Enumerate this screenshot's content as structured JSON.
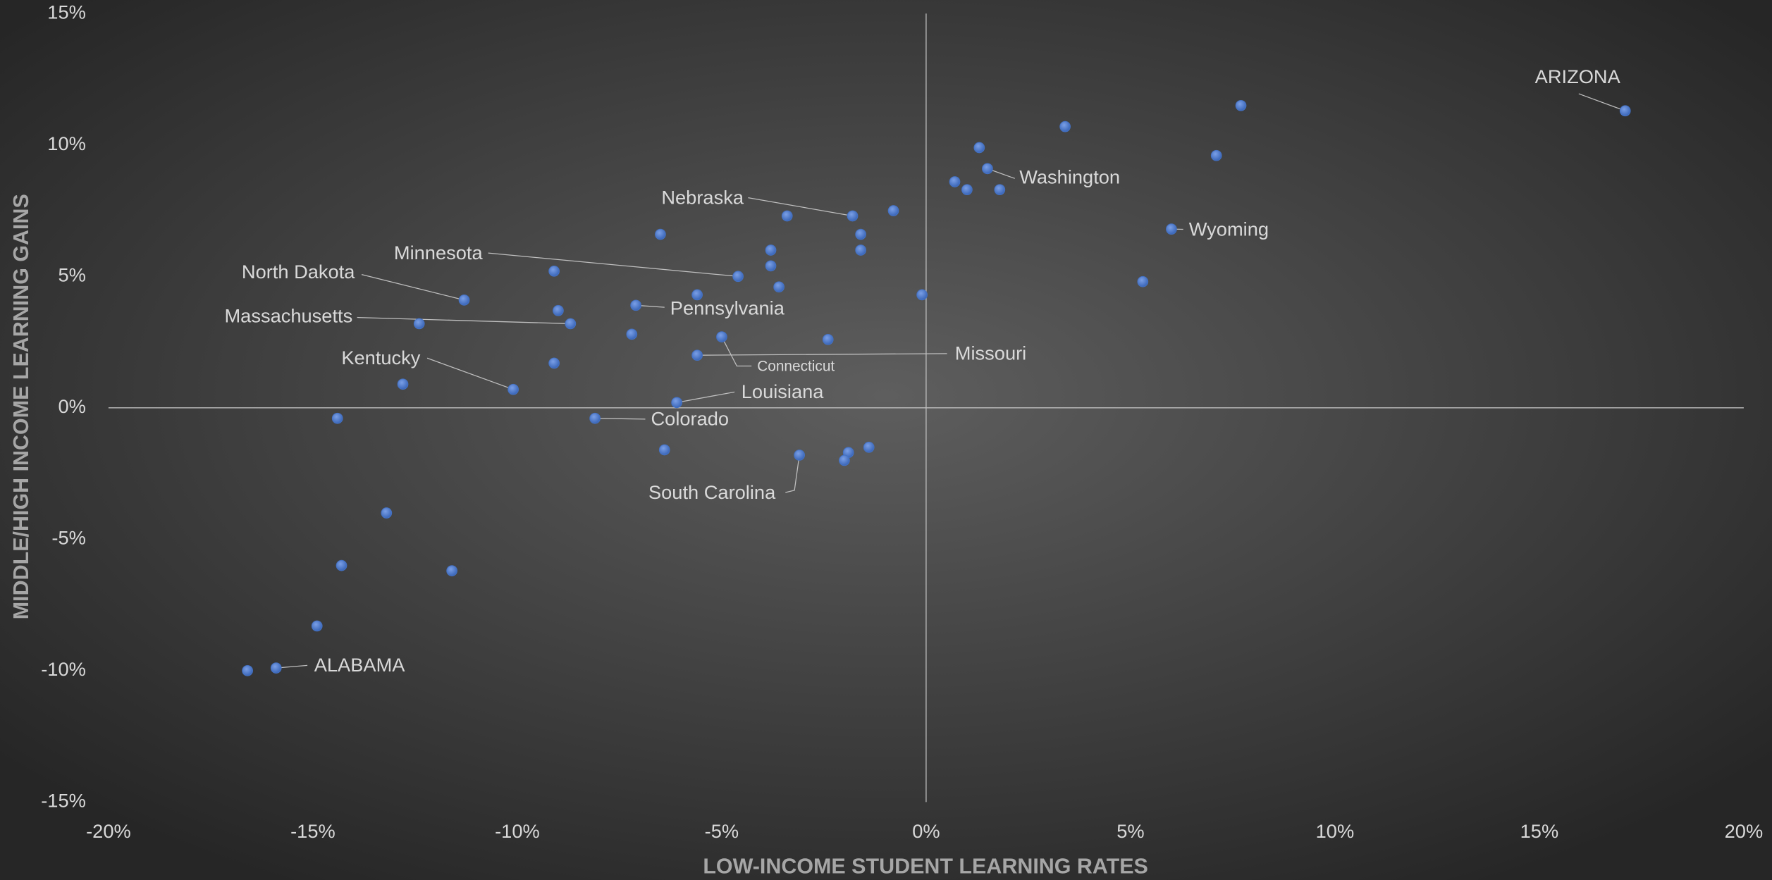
{
  "chart_data": {
    "type": "scatter",
    "x_label": "LOW-INCOME STUDENT LEARNING RATES",
    "y_label": "MIDDLE/HIGH INCOME LEARNING GAINS",
    "xlim": [
      -20,
      20
    ],
    "ylim": [
      -15,
      15
    ],
    "xticks": [
      {
        "value": -20,
        "label": "-20%"
      },
      {
        "value": -15,
        "label": "-15%"
      },
      {
        "value": -10,
        "label": "-10%"
      },
      {
        "value": -5,
        "label": "-5%"
      },
      {
        "value": 0,
        "label": "0%"
      },
      {
        "value": 5,
        "label": "5%"
      },
      {
        "value": 10,
        "label": "10%"
      },
      {
        "value": 15,
        "label": "15%"
      },
      {
        "value": 20,
        "label": "20%"
      }
    ],
    "yticks": [
      {
        "value": -15,
        "label": "-15%"
      },
      {
        "value": -10,
        "label": "-10%"
      },
      {
        "value": -5,
        "label": "-5%"
      },
      {
        "value": 0,
        "label": "0%"
      },
      {
        "value": 5,
        "label": "5%"
      },
      {
        "value": 10,
        "label": "10%"
      },
      {
        "value": 15,
        "label": "15%"
      }
    ],
    "grid": false,
    "series": [
      {
        "color": "#4472c4",
        "x": [
          17.1,
          7.7,
          7.1,
          3.4,
          1.3,
          1.5,
          0.7,
          1.0,
          1.8,
          6.0,
          5.3,
          -0.8,
          -1.8,
          -3.4,
          -1.6,
          -1.6,
          -3.8,
          -3.8,
          -3.6,
          -4.6,
          -6.5,
          -0.1,
          -5.6,
          -7.1,
          -9.1,
          -11.3,
          -9.0,
          -8.7,
          -12.4,
          -7.2,
          -5.0,
          -2.4,
          -5.6,
          -9.1,
          -12.8,
          -10.1,
          -6.1,
          -8.1,
          -14.4,
          -6.4,
          -3.1,
          -1.4,
          -1.9,
          -2.0,
          -13.2,
          -14.3,
          -11.6,
          -14.9,
          -15.9,
          -16.6
        ],
        "values": [
          11.3,
          11.5,
          9.6,
          10.7,
          9.9,
          9.1,
          8.6,
          8.3,
          8.3,
          6.8,
          4.8,
          7.5,
          7.3,
          7.3,
          6.6,
          6.0,
          6.0,
          5.4,
          4.6,
          5.0,
          6.6,
          4.3,
          4.3,
          3.9,
          5.2,
          4.1,
          3.7,
          3.2,
          3.2,
          2.8,
          2.7,
          2.6,
          2.0,
          1.7,
          0.9,
          0.7,
          0.2,
          -0.4,
          -0.4,
          -1.6,
          -1.8,
          -1.5,
          -1.7,
          -2.0,
          -4.0,
          -6.0,
          -6.2,
          -8.3,
          -9.9,
          -10.0
        ],
        "labels": [
          "ARIZONA",
          null,
          null,
          null,
          null,
          "Washington",
          null,
          null,
          null,
          "Wyoming",
          null,
          null,
          "Nebraska",
          null,
          null,
          null,
          null,
          null,
          null,
          "Minnesota",
          null,
          null,
          null,
          "Pennsylvania",
          null,
          "North Dakota",
          null,
          "Massachusetts",
          null,
          null,
          "Connecticut",
          null,
          "Missouri",
          null,
          null,
          "Kentucky",
          "Louisiana",
          "Colorado",
          null,
          null,
          "South Carolina",
          null,
          null,
          null,
          null,
          null,
          null,
          null,
          "ALABAMA",
          null
        ]
      }
    ]
  }
}
